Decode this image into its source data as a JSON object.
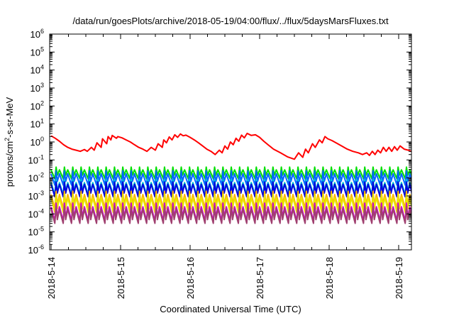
{
  "chart_data": {
    "type": "line",
    "title": "/data/run/goesPlots/archive/2018-05-19/04:00/flux/../flux/5daysMarsFluxes.txt",
    "xlabel": "Coordinated Universal Time (UTC)",
    "ylabel": {
      "prefix": "protons/cm",
      "sup": "2",
      "suffix": "-s-sr-MeV"
    },
    "yscale": "log",
    "ylim_exp": [
      -6,
      6
    ],
    "y_ticks": [
      {
        "base": "10",
        "exp": "-6"
      },
      {
        "base": "10",
        "exp": "-5"
      },
      {
        "base": "10",
        "exp": "-4"
      },
      {
        "base": "10",
        "exp": "-3"
      },
      {
        "base": "10",
        "exp": "-2"
      },
      {
        "base": "10",
        "exp": "-1"
      },
      {
        "base": "10",
        "exp": "0"
      },
      {
        "base": "10",
        "exp": "1"
      },
      {
        "base": "10",
        "exp": "2"
      },
      {
        "base": "10",
        "exp": "3"
      },
      {
        "base": "10",
        "exp": "4"
      },
      {
        "base": "10",
        "exp": "5"
      },
      {
        "base": "10",
        "exp": "6"
      }
    ],
    "xlim_days": [
      0,
      5.2
    ],
    "x_ticks": [
      "2018-5-14",
      "2018-5-15",
      "2018-5-16",
      "2018-5-17",
      "2018-5-18",
      "2018-5-19"
    ],
    "grid": false,
    "series": [
      {
        "color": "#ff0000",
        "x": [
          0,
          0.06,
          0.12,
          0.18,
          0.24,
          0.3,
          0.36,
          0.42,
          0.48,
          0.52,
          0.58,
          0.62,
          0.66,
          0.72,
          0.74,
          0.8,
          0.82,
          0.86,
          0.88,
          0.94,
          0.96,
          1.02,
          1.08,
          1.14,
          1.2,
          1.26,
          1.32,
          1.38,
          1.44,
          1.5,
          1.54,
          1.6,
          1.62,
          1.66,
          1.7,
          1.74,
          1.78,
          1.82,
          1.86,
          1.9,
          1.94,
          2.0,
          2.06,
          2.12,
          2.18,
          2.24,
          2.3,
          2.36,
          2.42,
          2.46,
          2.5,
          2.54,
          2.58,
          2.62,
          2.66,
          2.7,
          2.74,
          2.78,
          2.82,
          2.88,
          2.94,
          3.0,
          3.06,
          3.12,
          3.2,
          3.3,
          3.4,
          3.5,
          3.56,
          3.62,
          3.66,
          3.7,
          3.76,
          3.8,
          3.86,
          3.9,
          3.94,
          3.98,
          4.04,
          4.1,
          4.18,
          4.26,
          4.34,
          4.42,
          4.48,
          4.54,
          4.58,
          4.62,
          4.66,
          4.7,
          4.74,
          4.78,
          4.82,
          4.86,
          4.9,
          4.94,
          4.98,
          5.02,
          5.08,
          5.14,
          5.2
        ],
        "y": [
          2.2,
          1.6,
          1.1,
          0.7,
          0.5,
          0.4,
          0.35,
          0.3,
          0.38,
          0.3,
          0.5,
          0.35,
          0.9,
          0.5,
          1.5,
          0.8,
          2.0,
          1.3,
          2.3,
          1.6,
          2.0,
          1.7,
          1.3,
          1.0,
          0.7,
          0.5,
          0.4,
          0.3,
          0.5,
          0.35,
          0.8,
          0.5,
          1.3,
          0.9,
          1.9,
          1.3,
          2.5,
          1.8,
          2.8,
          2.2,
          2.4,
          1.8,
          1.3,
          0.9,
          0.6,
          0.4,
          0.3,
          0.2,
          0.35,
          0.25,
          0.6,
          0.4,
          1.0,
          0.7,
          1.6,
          1.1,
          2.4,
          1.7,
          3.0,
          2.3,
          2.5,
          1.8,
          1.1,
          0.7,
          0.4,
          0.25,
          0.15,
          0.11,
          0.25,
          0.14,
          0.4,
          0.25,
          0.8,
          0.5,
          1.3,
          0.9,
          2.0,
          1.5,
          1.2,
          0.9,
          0.6,
          0.4,
          0.3,
          0.25,
          0.2,
          0.25,
          0.18,
          0.3,
          0.2,
          0.35,
          0.25,
          0.5,
          0.3,
          0.5,
          0.3,
          0.55,
          0.35,
          0.6,
          0.4,
          0.35,
          0.28
        ]
      },
      {
        "color": "#00e000",
        "shape": "sawtooth",
        "peak": 0.028,
        "trough": 0.009,
        "period": 0.12,
        "mid_rise": 0.04
      },
      {
        "color": "#0066ff",
        "shape": "sawtooth",
        "peak": 0.017,
        "trough": 0.004,
        "period": 0.12,
        "mid_rise": 0.025
      },
      {
        "color": "#00cfcf",
        "shape": "sawtooth",
        "peak": 0.0055,
        "trough": 0.0012,
        "period": 0.12,
        "mid_rise": 0.008
      },
      {
        "color": "#0000dd",
        "shape": "sawtooth",
        "peak": 0.0045,
        "trough": 0.0009,
        "period": 0.12,
        "mid_rise": 0.006
      },
      {
        "color": "#ffb000",
        "shape": "sawtooth",
        "peak": 0.0012,
        "trough": 0.0002,
        "period": 0.12,
        "mid_rise": 0.0018
      },
      {
        "color": "#e8e800",
        "shape": "sawtooth",
        "peak": 0.0008,
        "trough": 0.00012,
        "period": 0.12,
        "mid_rise": 0.0012
      },
      {
        "color": "#cc00cc",
        "shape": "sawtooth",
        "peak": 0.00025,
        "trough": 4e-05,
        "period": 0.12,
        "mid_rise": 0.0004
      },
      {
        "color": "#a04070",
        "shape": "sawtooth",
        "peak": 0.00018,
        "trough": 3e-05,
        "period": 0.12,
        "mid_rise": 0.00025
      }
    ]
  }
}
